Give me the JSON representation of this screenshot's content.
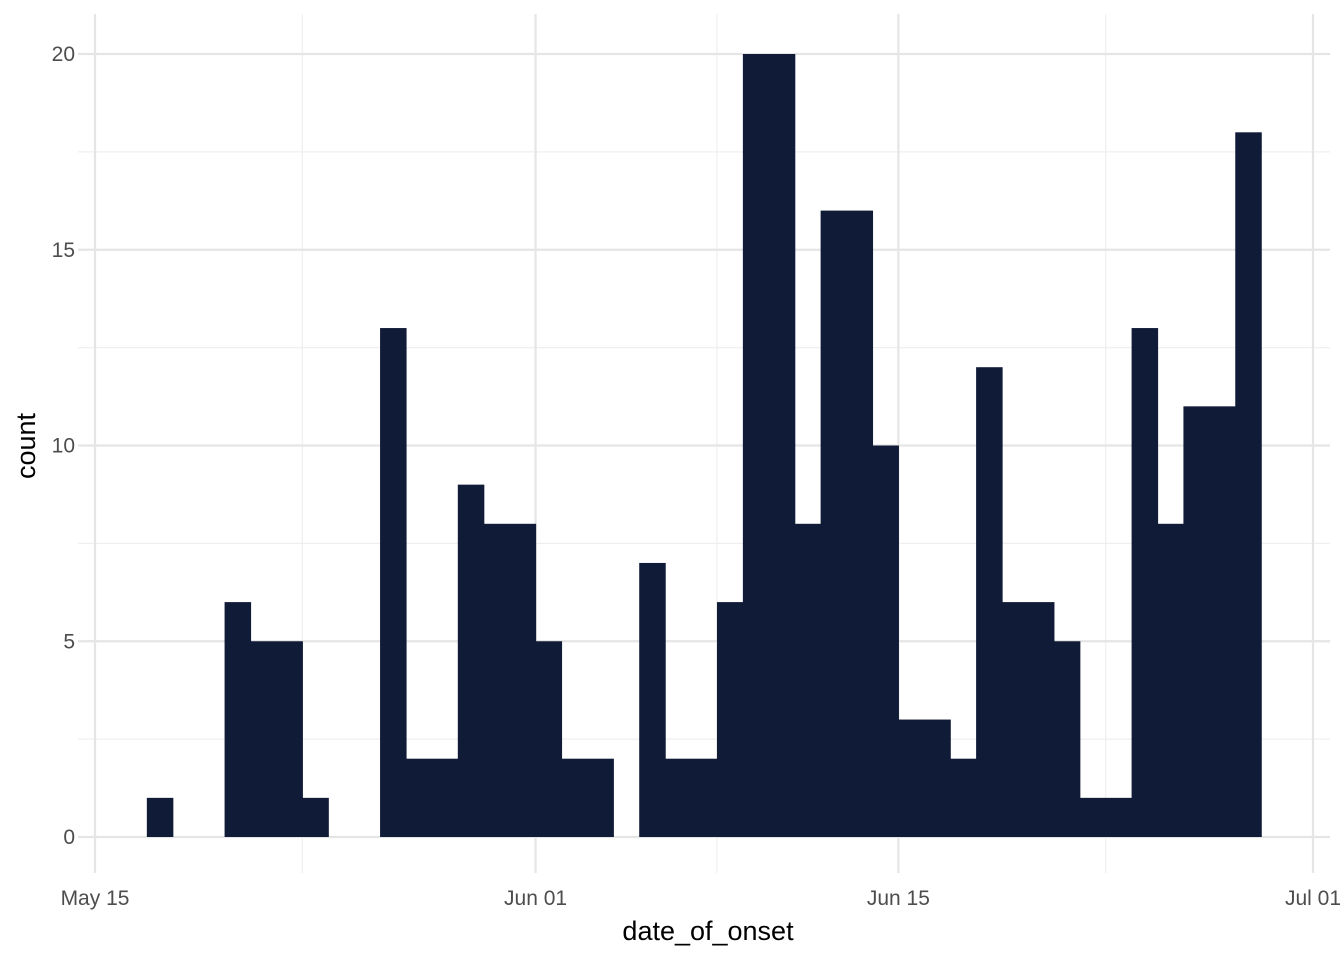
{
  "chart_data": {
    "type": "bar",
    "xlabel": "date_of_onset",
    "ylabel": "count",
    "x_axis": {
      "range": [
        "2021-05-15",
        "2021-07-01"
      ],
      "ticks": [
        {
          "value": "2021-05-15",
          "label": "May 15"
        },
        {
          "value": "2021-06-01",
          "label": "Jun 01"
        },
        {
          "value": "2021-06-15",
          "label": "Jun 15"
        },
        {
          "value": "2021-07-01",
          "label": "Jul 01"
        }
      ],
      "minor_ticks": [
        "2021-05-23",
        "2021-06-08",
        "2021-06-23"
      ]
    },
    "y_axis": {
      "ylim": [
        0,
        20
      ],
      "ticks": [
        0,
        5,
        10,
        15,
        20
      ]
    },
    "bar_color": "#101b37",
    "grid": true,
    "bins": [
      {
        "start": "2021-05-17",
        "end": "2021-05-18",
        "count": 1
      },
      {
        "start": "2021-05-18",
        "end": "2021-05-20",
        "count": 0
      },
      {
        "start": "2021-05-20",
        "end": "2021-05-21",
        "count": 6
      },
      {
        "start": "2021-05-21",
        "end": "2021-05-23",
        "count": 5
      },
      {
        "start": "2021-05-23",
        "end": "2021-05-24",
        "count": 1
      },
      {
        "start": "2021-05-24",
        "end": "2021-05-26",
        "count": 0
      },
      {
        "start": "2021-05-26",
        "end": "2021-05-27",
        "count": 13
      },
      {
        "start": "2021-05-27",
        "end": "2021-05-29",
        "count": 2
      },
      {
        "start": "2021-05-29",
        "end": "2021-05-30",
        "count": 9
      },
      {
        "start": "2021-05-30",
        "end": "2021-06-01",
        "count": 8
      },
      {
        "start": "2021-06-01",
        "end": "2021-06-02",
        "count": 5
      },
      {
        "start": "2021-06-02",
        "end": "2021-06-04",
        "count": 2
      },
      {
        "start": "2021-06-04",
        "end": "2021-06-05",
        "count": 0
      },
      {
        "start": "2021-06-05",
        "end": "2021-06-06",
        "count": 7
      },
      {
        "start": "2021-06-06",
        "end": "2021-06-08",
        "count": 2
      },
      {
        "start": "2021-06-08",
        "end": "2021-06-09",
        "count": 6
      },
      {
        "start": "2021-06-09",
        "end": "2021-06-11",
        "count": 20
      },
      {
        "start": "2021-06-11",
        "end": "2021-06-12",
        "count": 8
      },
      {
        "start": "2021-06-12",
        "end": "2021-06-14",
        "count": 16
      },
      {
        "start": "2021-06-14",
        "end": "2021-06-15",
        "count": 10
      },
      {
        "start": "2021-06-15",
        "end": "2021-06-17",
        "count": 3
      },
      {
        "start": "2021-06-17",
        "end": "2021-06-18",
        "count": 2
      },
      {
        "start": "2021-06-18",
        "end": "2021-06-19",
        "count": 12
      },
      {
        "start": "2021-06-19",
        "end": "2021-06-21",
        "count": 6
      },
      {
        "start": "2021-06-21",
        "end": "2021-06-22",
        "count": 5
      },
      {
        "start": "2021-06-22",
        "end": "2021-06-24",
        "count": 1
      },
      {
        "start": "2021-06-24",
        "end": "2021-06-25",
        "count": 13
      },
      {
        "start": "2021-06-25",
        "end": "2021-06-26",
        "count": 8
      },
      {
        "start": "2021-06-26",
        "end": "2021-06-28",
        "count": 11
      },
      {
        "start": "2021-06-28",
        "end": "2021-06-29",
        "count": 18
      }
    ]
  }
}
